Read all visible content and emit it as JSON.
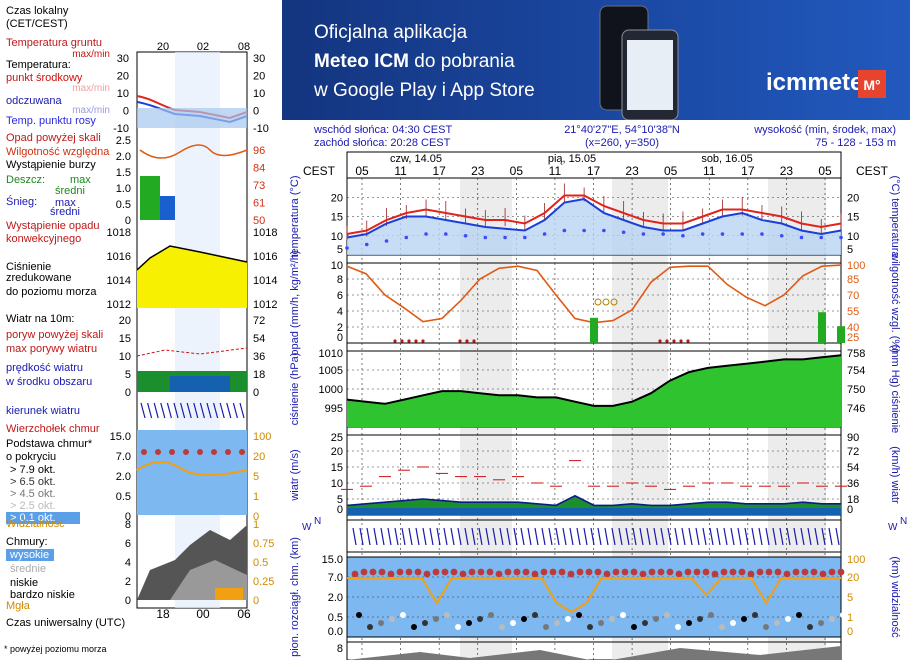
{
  "legend": {
    "time_title": [
      "Czas lokalny",
      "(CET/CEST)"
    ],
    "time_ticks": [
      "20",
      "02",
      "08"
    ],
    "temp": {
      "ground": "Temperatura gruntu",
      "ground_sub": "max/min",
      "title": "Temperatura:",
      "mid": "punkt środkowy",
      "maxmin": "max/min",
      "feels": "odczuwana",
      "feels_maxmin": "max/min",
      "dew": "Temp. punktu rosy",
      "ticks": [
        "30",
        "20",
        "10",
        "0",
        "-10"
      ]
    },
    "precip": {
      "over": "Opad powyżej skali",
      "humid": "Wilgotność względna",
      "storm": "Wystąpienie burzy",
      "rain": "Deszcz:",
      "rain_max": "max",
      "rain_avg": "średni",
      "snow": "Śnieg:",
      "snow_max": "max",
      "snow_avg": "średni",
      "occur": "Wystąpienie opadu",
      "occur2": "konwekcyjnego",
      "ticks_l": [
        "2.5",
        "2.0",
        "1.5",
        "1.0",
        "0.5",
        "0"
      ],
      "ticks_r": [
        "96",
        "84",
        "73",
        "61",
        "50"
      ]
    },
    "pressure": {
      "l1": "Ciśnienie",
      "l2": "zredukowane",
      "l3": "do poziomu morza",
      "ticks": [
        "1018",
        "1016",
        "1014",
        "1012"
      ]
    },
    "wind": {
      "title": "Wiatr na 10m:",
      "gust_over": "poryw powyżej skali",
      "gust_max": "max porywy wiatru",
      "speed": "prędkość wiatru",
      "speed2": "w środku obszaru",
      "ticks_l": [
        "20",
        "15",
        "10",
        "5",
        "0"
      ],
      "ticks_r": [
        "72",
        "54",
        "36",
        "18",
        "0"
      ]
    },
    "direction": "kierunek wiatru",
    "clouds_base": {
      "top": "Wierzchołek chmur",
      "l1": "Podstawa chmur*",
      "l2": "o pokryciu",
      "o1": "> 7.9 okt.",
      "o2": "> 6.5 okt.",
      "o3": "> 4.5 okt.",
      "o4": "> 2.5 okt.",
      "o5": "> 0.1 okt.",
      "vis": "Widzialność",
      "ticks_l": [
        "15.0",
        "7.0",
        "2.0",
        "0.5",
        "0"
      ],
      "ticks_r": [
        "100",
        "20",
        "5",
        "1",
        "0"
      ]
    },
    "clouds": {
      "title": "Chmury:",
      "high": "wysokie",
      "mid": "średnie",
      "low": "niskie",
      "vlow": "bardzo niskie",
      "fog": "Mgła",
      "ticks_l": [
        "8",
        "6",
        "4",
        "2",
        "0"
      ],
      "ticks_r": [
        "1",
        "0.75",
        "0.5",
        "0.25",
        "0"
      ]
    },
    "utc_title": "Czas uniwersalny (UTC)",
    "utc_ticks": [
      "18",
      "00",
      "06"
    ],
    "footnote": "* powyżej poziomu morza"
  },
  "banner": {
    "line1": "Oficjalna aplikacja",
    "line2_bold": "Meteo ICM",
    "line2_rest": " do pobrania",
    "line3": "w Google Play i App Store",
    "brand": "icmmeteo",
    "brand_badge": "M°"
  },
  "info": {
    "sunrise": "wschód słońca: 04:30 CEST",
    "sunset": "zachód słońca: 20:28 CEST",
    "coords": "21°40'27\"E, 54°10'38\"N",
    "grid": "(x=260,  y=350)",
    "elev_label": "wysokość (min, środek, max)",
    "elev_values": "75 - 128 - 153 m"
  },
  "header": {
    "tz": "CEST",
    "days": [
      "czw, 14.05",
      "pią, 15.05",
      "sob, 16.05"
    ],
    "hours": [
      "05",
      "11",
      "17",
      "23",
      "05",
      "11",
      "17",
      "23",
      "05",
      "11",
      "17",
      "23",
      "05"
    ]
  },
  "colors": {
    "temp_max": "#e0241c",
    "temp_mid": "#1a3fd8",
    "dew": "#3b49ff",
    "humid": "#e05a14",
    "pressure_fill": "#2fc42f",
    "rain": "#22aa22",
    "wind_area": "#1b8f2e",
    "vis": "#f2a010",
    "cloud_dot": "#bb3a3a",
    "axis_blue": "#1a1ab0",
    "banner_bg": "#1b4aa6"
  },
  "chart_data": [
    {
      "type": "line",
      "title": "temperatura",
      "ylabel": "temperatura (°C)",
      "ylim": [
        2,
        24
      ],
      "ticks": [
        "20",
        "15",
        "10",
        "5"
      ],
      "x": [
        "05",
        "08",
        "11",
        "14",
        "17",
        "20",
        "23",
        "02",
        "05",
        "08",
        "11",
        "14",
        "17",
        "20",
        "23",
        "02",
        "05",
        "08",
        "11",
        "14",
        "17",
        "20",
        "23",
        "02",
        "05",
        "08"
      ],
      "series": [
        {
          "name": "max/min",
          "values": [
            8,
            9,
            12,
            14,
            15,
            14,
            13,
            12,
            12,
            11,
            14,
            19,
            19,
            16,
            14,
            12,
            11,
            11,
            13,
            15,
            15,
            14,
            13,
            11,
            10,
            11
          ]
        },
        {
          "name": "punkt środkowy",
          "values": [
            7,
            8,
            11,
            13,
            13,
            12,
            11,
            10,
            9.5,
            9,
            12,
            17,
            18,
            14,
            12,
            10,
            9,
            9,
            11,
            13,
            14,
            12,
            11,
            9,
            8,
            9
          ]
        },
        {
          "name": "Temp. punktu rosy",
          "values": [
            4,
            5,
            6,
            7,
            8,
            8,
            7.5,
            7,
            7,
            7,
            8,
            9,
            9,
            9,
            8.5,
            8,
            8,
            7.5,
            8,
            8,
            8,
            8,
            7.5,
            7,
            7,
            7
          ]
        }
      ]
    },
    {
      "type": "line",
      "title": "opad",
      "ylabel": "opad (mm/h, kg/m²/h)",
      "y2label": "wilgotność wzgl. (%)",
      "ylim": [
        0,
        10
      ],
      "ticks": [
        "10",
        "8",
        "6",
        "4",
        "2",
        "0"
      ],
      "ticks_right": [
        "100",
        "85",
        "70",
        "55",
        "40",
        "25"
      ],
      "series": [
        {
          "name": "wilgotność względna",
          "values": [
            97,
            90,
            70,
            58,
            45,
            48,
            65,
            85,
            95,
            97,
            93,
            70,
            48,
            44,
            46,
            56,
            82,
            96,
            97,
            97,
            80,
            68,
            60,
            70,
            88,
            97,
            98
          ]
        },
        {
          "name": "opad",
          "values": [
            0,
            0,
            0,
            0,
            0,
            0,
            0,
            0,
            0,
            0,
            0,
            0,
            0,
            0.9,
            0,
            0,
            0,
            0,
            0,
            0,
            0,
            0,
            0,
            0,
            0,
            1.1,
            0.6
          ]
        }
      ]
    },
    {
      "type": "area",
      "title": "ciśnienie",
      "ylabel": "ciśnienie (hPa)",
      "y2label": "(mm Hg) ciśnienie",
      "ylim": [
        993,
        1011
      ],
      "ticks": [
        "1010",
        "1005",
        "1000",
        "995"
      ],
      "ticks_right": [
        "758",
        "754",
        "750",
        "746"
      ],
      "values": [
        999.5,
        999,
        998.5,
        999.5,
        1000.5,
        1001.5,
        1001.5,
        1001,
        1000.5,
        1000.5,
        1000,
        1000,
        999,
        998,
        998,
        999,
        1001,
        1004,
        1006,
        1007,
        1007.5,
        1008,
        1008.5,
        1009,
        1009,
        1009.5,
        1010
      ]
    },
    {
      "type": "line",
      "title": "wiatr",
      "ylabel": "wiatr (m/s)",
      "y2label": "(km/h) wiatr",
      "ylim": [
        0,
        25
      ],
      "ticks": [
        "25",
        "20",
        "15",
        "10",
        "5",
        "0"
      ],
      "ticks_right": [
        "90",
        "72",
        "54",
        "36",
        "18",
        "0"
      ],
      "series": [
        {
          "name": "max porywy wiatru",
          "values": [
            8,
            9,
            12,
            14,
            15,
            13,
            12,
            12,
            11,
            12,
            10,
            9,
            17,
            9,
            9,
            10,
            9,
            8,
            9,
            10,
            10,
            9,
            9,
            9,
            10,
            9,
            9
          ]
        },
        {
          "name": "prędkość wiatru",
          "values": [
            3,
            3.5,
            4,
            4.5,
            5,
            4.5,
            4,
            4,
            4,
            4,
            3.5,
            3,
            6,
            3,
            3,
            3.5,
            3,
            3,
            3.5,
            4,
            4,
            3.5,
            3.5,
            3.5,
            4,
            3.5,
            3.5
          ]
        }
      ]
    },
    {
      "type": "scatter",
      "title": "pion. rozciągł. chm.",
      "ylabel": "pion. rozciągł. chm. (km)",
      "y2label": "(km) widzialność",
      "ticks": [
        "15.0",
        "7.0",
        "2.0",
        "0.5",
        "0.0"
      ],
      "ticks_right": [
        "100",
        "20",
        "5",
        "1",
        "0"
      ]
    },
    {
      "type": "area",
      "title": "chmury",
      "ticks": [
        "8"
      ]
    }
  ]
}
